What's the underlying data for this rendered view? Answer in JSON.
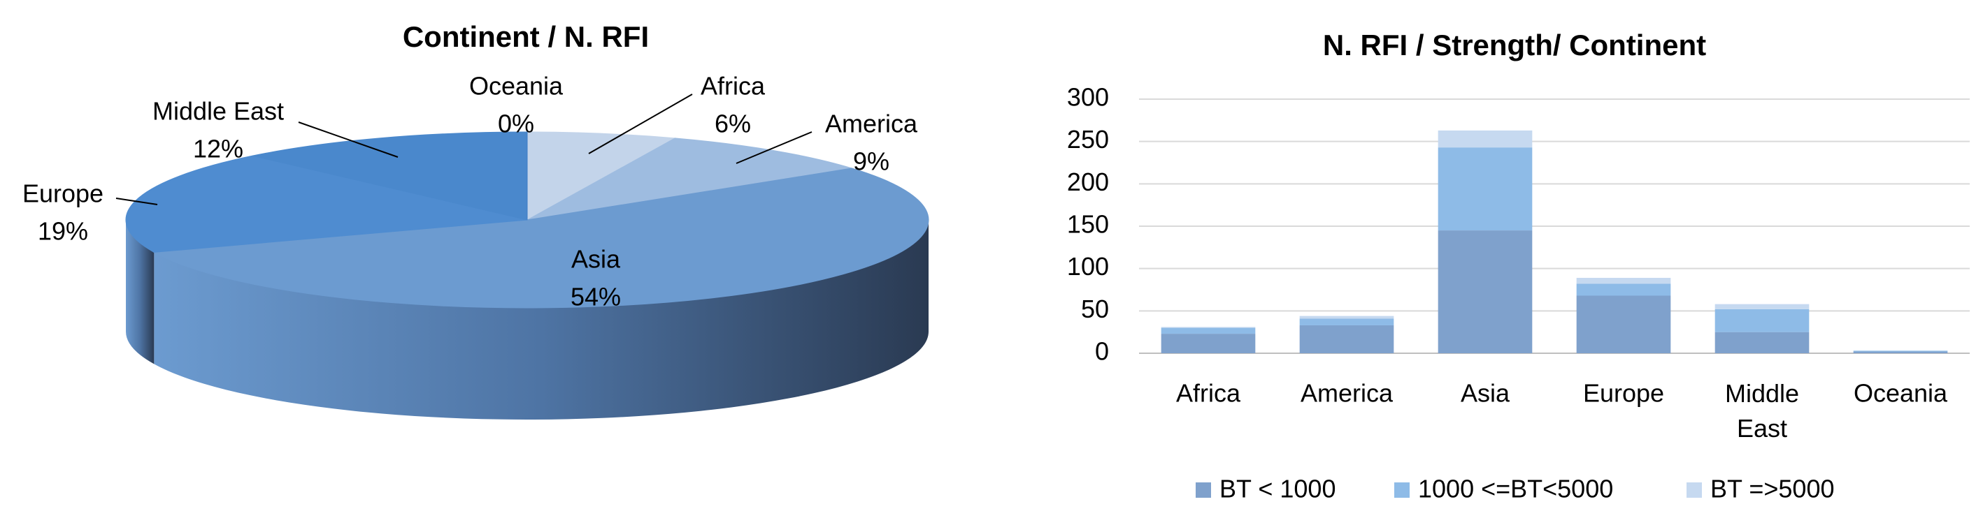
{
  "chart_data": [
    {
      "type": "pie",
      "title": "Continent / N. RFI",
      "categories": [
        "Africa",
        "America",
        "Asia",
        "Europe",
        "Middle East",
        "Oceania"
      ],
      "values": [
        6,
        9,
        54,
        19,
        12,
        0
      ],
      "value_labels": [
        "6%",
        "9%",
        "54%",
        "19%",
        "12%",
        "0%"
      ],
      "colors": [
        "#c3d4ea",
        "#9ebce0",
        "#6c9bd0",
        "#4f8cd0",
        "#4a88cc",
        "#3d7cc4"
      ]
    },
    {
      "type": "bar",
      "title": "N. RFI / Strength/ Continent",
      "categories": [
        "Africa",
        "America",
        "Asia",
        "Europe",
        "Middle East",
        "Oceania"
      ],
      "series": [
        {
          "name": "BT < 1000",
          "color": "#7fa1cc",
          "values": [
            23,
            33,
            145,
            68,
            25,
            2
          ]
        },
        {
          "name": "1000 <=BT<5000",
          "color": "#8ebbe7",
          "values": [
            7,
            8,
            98,
            14,
            27,
            1
          ]
        },
        {
          "name": "BT =>5000",
          "color": "#c6d9f0",
          "values": [
            1,
            3,
            20,
            7,
            6,
            0
          ]
        }
      ],
      "ylim": [
        0,
        300
      ],
      "yticks": [
        0,
        50,
        100,
        150,
        200,
        250,
        300
      ],
      "grid": true
    }
  ]
}
